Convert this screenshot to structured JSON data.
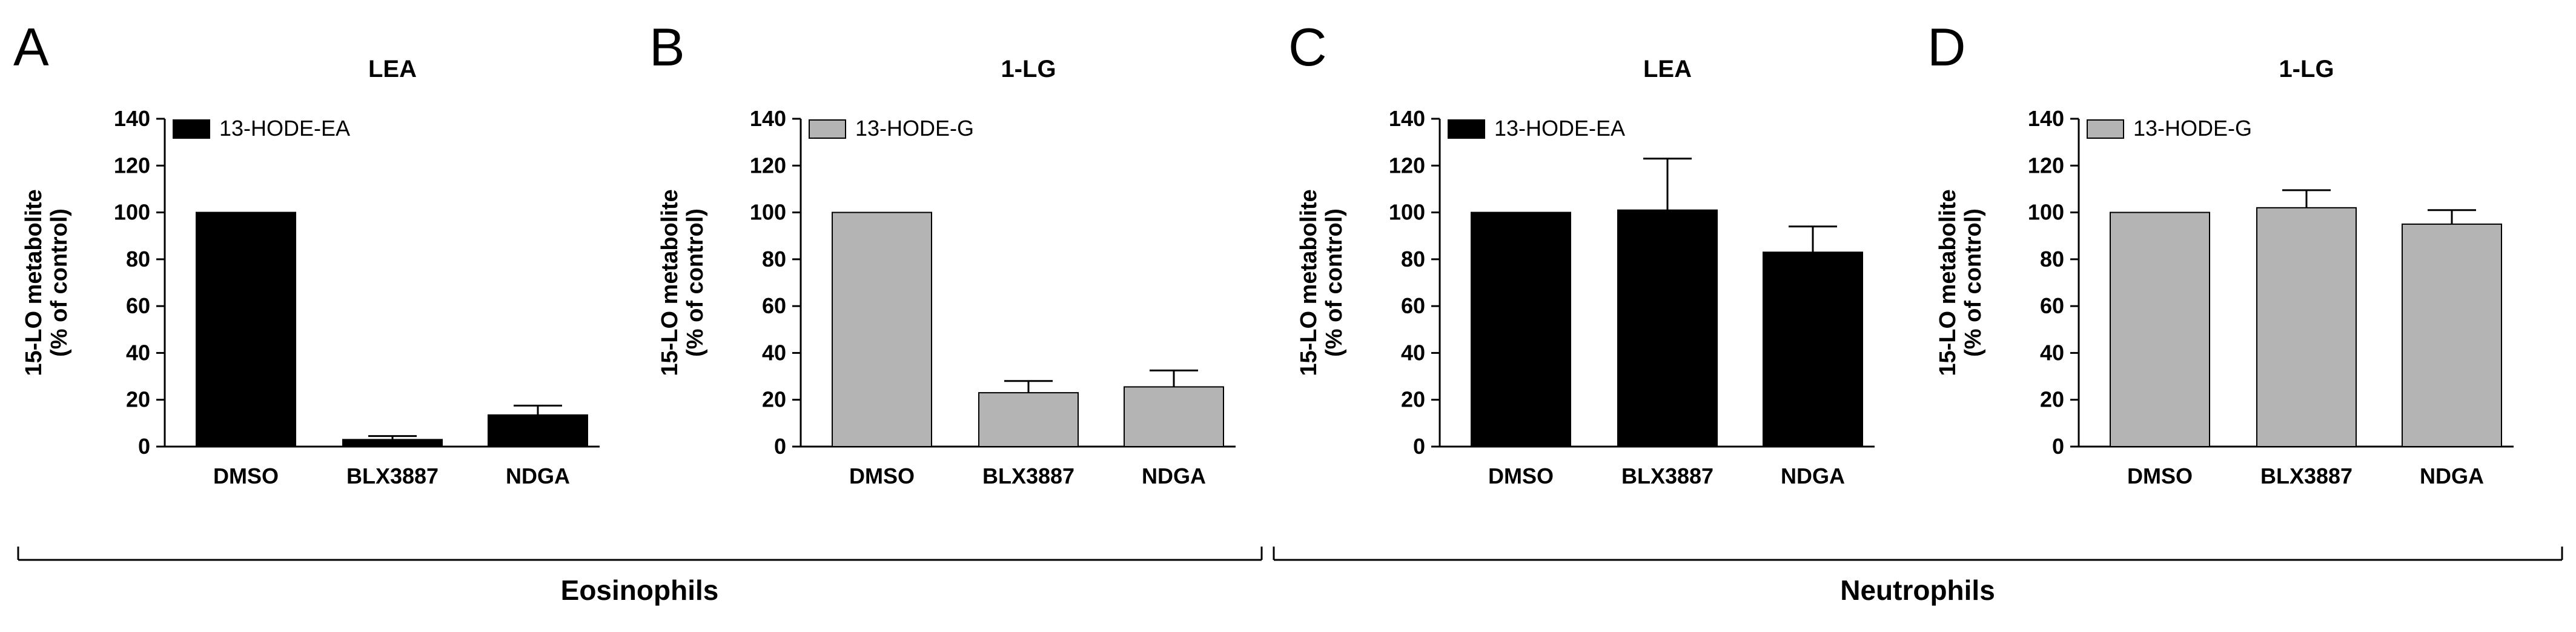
{
  "figure": {
    "groups": [
      {
        "label": "Eosinophils",
        "panels": [
          0,
          1
        ]
      },
      {
        "label": "Neutrophils",
        "panels": [
          2,
          3
        ]
      }
    ]
  },
  "colors": {
    "black_bar": "#000000",
    "grey_bar": "#b4b4b4",
    "axis": "#000000",
    "error_bar": "#000000"
  },
  "chart_data": [
    {
      "type": "bar",
      "panel_letter": "A",
      "title": "LEA",
      "ylabel_line1": "15-LO metabolite",
      "ylabel_line2": "(% of control)",
      "xlabel": "",
      "ylim": [
        0,
        140
      ],
      "yticks": [
        0,
        20,
        40,
        60,
        80,
        100,
        120,
        140
      ],
      "categories": [
        "DMSO",
        "BLX3887",
        "NDGA"
      ],
      "series": [
        {
          "name": "13-HODE-EA",
          "color": "#000000",
          "values": [
            100,
            3,
            13.5
          ],
          "errors": [
            0,
            1.5,
            4
          ]
        }
      ],
      "legend_position": "top-left"
    },
    {
      "type": "bar",
      "panel_letter": "B",
      "title": "1-LG",
      "ylabel_line1": "15-LO metabolite",
      "ylabel_line2": "(% of control)",
      "xlabel": "",
      "ylim": [
        0,
        140
      ],
      "yticks": [
        0,
        20,
        40,
        60,
        80,
        100,
        120,
        140
      ],
      "categories": [
        "DMSO",
        "BLX3887",
        "NDGA"
      ],
      "series": [
        {
          "name": "13-HODE-G",
          "color": "#b4b4b4",
          "values": [
            100,
            23,
            25.5
          ],
          "errors": [
            0,
            5,
            7
          ]
        }
      ],
      "legend_position": "top-left"
    },
    {
      "type": "bar",
      "panel_letter": "C",
      "title": "LEA",
      "ylabel_line1": "15-LO metabolite",
      "ylabel_line2": "(% of control)",
      "xlabel": "",
      "ylim": [
        0,
        140
      ],
      "yticks": [
        0,
        20,
        40,
        60,
        80,
        100,
        120,
        140
      ],
      "categories": [
        "DMSO",
        "BLX3887",
        "NDGA"
      ],
      "series": [
        {
          "name": "13-HODE-EA",
          "color": "#000000",
          "values": [
            100,
            101,
            83
          ],
          "errors": [
            0,
            22,
            11
          ]
        }
      ],
      "legend_position": "top-left"
    },
    {
      "type": "bar",
      "panel_letter": "D",
      "title": "1-LG",
      "ylabel_line1": "15-LO metabolite",
      "ylabel_line2": "(% of control)",
      "xlabel": "",
      "ylim": [
        0,
        140
      ],
      "yticks": [
        0,
        20,
        40,
        60,
        80,
        100,
        120,
        140
      ],
      "categories": [
        "DMSO",
        "BLX3887",
        "NDGA"
      ],
      "series": [
        {
          "name": "13-HODE-G",
          "color": "#b4b4b4",
          "values": [
            100,
            102,
            95
          ],
          "errors": [
            0,
            7.5,
            6
          ]
        }
      ],
      "legend_position": "top-left"
    }
  ]
}
